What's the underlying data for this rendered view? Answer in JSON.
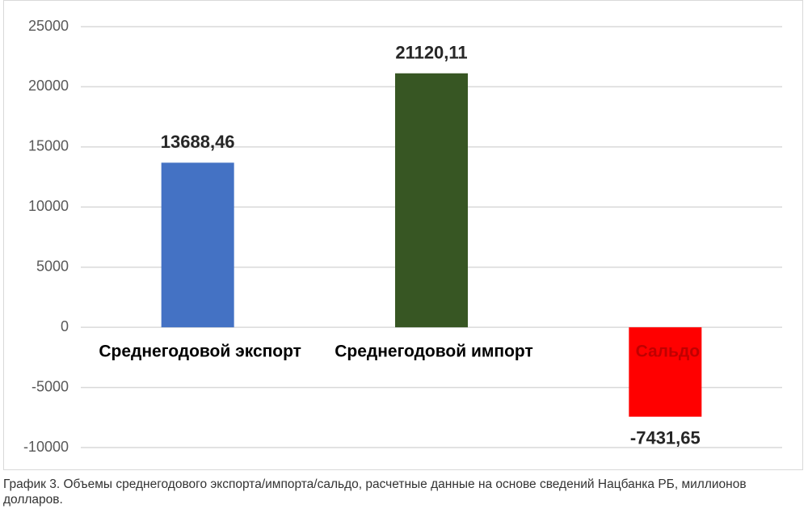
{
  "chart_data": {
    "type": "bar",
    "categories": [
      "Среднегодовой экспорт",
      "Среднегодовой импорт",
      "Сальдо"
    ],
    "values": [
      13688.46,
      21120.11,
      -7431.65
    ],
    "value_labels": [
      "13688,46",
      "21120,11",
      "-7431,65"
    ],
    "colors": [
      "#4472c4",
      "#375623",
      "#ff0000"
    ],
    "category_colors": [
      "#000000",
      "#000000",
      "#c00000"
    ],
    "ylim": [
      -10000,
      25000
    ],
    "yticks": [
      -10000,
      -5000,
      0,
      5000,
      10000,
      15000,
      20000,
      25000
    ],
    "grid": true,
    "caption": "График 3. Объемы среднегодового экспорта/импорта/сальдо, расчетные данные на основе сведений Нацбанка РБ, миллионов долларов."
  }
}
